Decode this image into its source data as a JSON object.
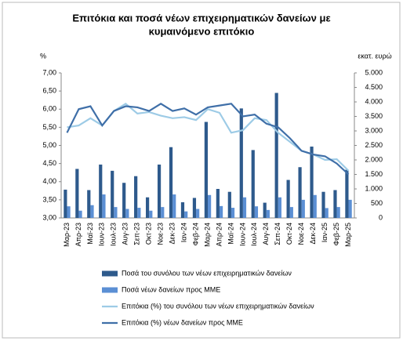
{
  "chart_data": {
    "type": "combo",
    "title": [
      "Επιτόκια και ποσά νέων επιχειρηματικών δανείων με",
      "κυμαινόμενο επιτόκιο"
    ],
    "y_label": "%",
    "y2_label": "εκατ. ευρώ",
    "categories": [
      "Μαρ-23",
      "Απρ-23",
      "Μαϊ-23",
      "Ιουν-23",
      "Ιουλ-23",
      "Αυγ-23",
      "Σεπ-23",
      "Οκτ-23",
      "Νοε-23",
      "Δεκ-23",
      "Ιαν-24",
      "Φεβ-24",
      "Μαρ-24",
      "Απρ-24",
      "Μαϊ-24",
      "Ιουν-24",
      "Ιουλ-24",
      "Αυγ-24",
      "Σεπ-24",
      "Οκτ-24",
      "Νοε-24",
      "Δεκ-24",
      "Ιαν-25",
      "Φεβ-25",
      "Μαρ-25"
    ],
    "series": [
      {
        "name": "Ποσά του συνόλου των νέων επιχειρηματικών δανείων",
        "type": "bar",
        "axis": "y2",
        "color": "#2e5a8c",
        "values": [
          975,
          1690,
          960,
          1840,
          1625,
          1210,
          1440,
          710,
          1840,
          2440,
          540,
          690,
          3310,
          1000,
          900,
          3775,
          2340,
          525,
          4310,
          1310,
          1750,
          2460,
          900,
          960,
          1660
        ]
      },
      {
        "name": "Ποσά νέων δανείων προς ΜΜΕ",
        "type": "bar",
        "axis": "y2",
        "color": "#5b8fd4",
        "values": [
          400,
          250,
          440,
          810,
          375,
          310,
          350,
          250,
          375,
          810,
          225,
          310,
          790,
          410,
          350,
          710,
          400,
          275,
          710,
          375,
          625,
          790,
          340,
          375,
          625
        ]
      },
      {
        "name": "Επιτόκια (%) του συνόλου των νέων επιχειρηματικών δανείων",
        "type": "line",
        "color": "#9dcbe6",
        "values": [
          5.5,
          5.55,
          5.75,
          5.55,
          5.95,
          6.15,
          5.88,
          5.92,
          5.82,
          5.75,
          5.78,
          5.7,
          6.0,
          5.9,
          5.35,
          5.42,
          5.75,
          5.7,
          5.35,
          5.1,
          4.85,
          4.75,
          4.6,
          4.62,
          4.3
        ]
      },
      {
        "name": "Επιτόκια (%) νέων δανείων προς ΜΜΕ",
        "type": "line",
        "color": "#3f6fa8",
        "values": [
          5.35,
          6.0,
          6.08,
          5.55,
          5.95,
          6.08,
          6.05,
          5.95,
          6.15,
          5.95,
          6.02,
          5.85,
          6.05,
          6.1,
          6.15,
          5.8,
          5.85,
          5.6,
          5.5,
          5.2,
          4.85,
          4.75,
          4.7,
          4.5,
          4.2
        ]
      }
    ],
    "ylim": [
      3,
      7
    ],
    "yticks": [
      {
        "value": 3,
        "label": "3,00"
      },
      {
        "value": 3.5,
        "label": "3,50"
      },
      {
        "value": 4,
        "label": "4,00"
      },
      {
        "value": 4.5,
        "label": "4,50"
      },
      {
        "value": 5,
        "label": "5,00"
      },
      {
        "value": 5.5,
        "label": "5,50"
      },
      {
        "value": 6,
        "label": "6,00"
      },
      {
        "value": 6.5,
        "label": "6,50"
      },
      {
        "value": 7,
        "label": "7,00"
      }
    ],
    "y2lim": [
      0,
      5000
    ],
    "y2ticks": [
      0,
      500,
      {
        "value": 1000,
        "label": "1.000"
      },
      {
        "value": 1500,
        "label": "1.500"
      },
      {
        "value": 2000,
        "label": "2.000"
      },
      {
        "value": 2500,
        "label": "2.500"
      },
      {
        "value": 3000,
        "label": "3.000"
      },
      {
        "value": 3500,
        "label": "3.500"
      },
      {
        "value": 4000,
        "label": "4.000"
      },
      {
        "value": 4500,
        "label": "4.500"
      },
      {
        "value": 5000,
        "label": "5.000"
      }
    ],
    "legend": "bottom"
  }
}
